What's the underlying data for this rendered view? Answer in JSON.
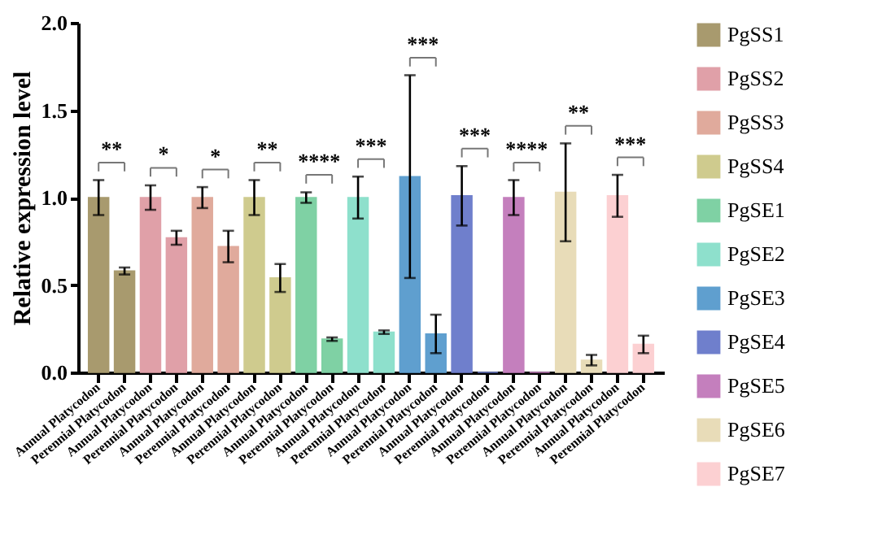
{
  "chart_data": {
    "type": "bar",
    "ylabel": "Relative expression level",
    "categories": [
      "Annual Platycodon",
      "Perennial Platycodon",
      "Annual Platycodon",
      "Perennial Platycodon",
      "Annual Platycodon",
      "Perennial Platycodon",
      "Annual Platycodon",
      "Perennial Platycodon",
      "Annual Platycodon",
      "Perennial Platycodon",
      "Annual Platycodon",
      "Perennial Platycodon",
      "Annual Platycodon",
      "Perennial Platycodon",
      "Annual Platycodon",
      "Perennial Platycodon",
      "Annual Platycodon",
      "Perennial Platycodon",
      "Annual Platycodon",
      "Perennial Platycodon",
      "Annual Platycodon",
      "Perennial Platycodon"
    ],
    "series": [
      {
        "name": "PgSS1",
        "color": "#a89a6e",
        "values": [
          1.0,
          0.58,
          null,
          null,
          null,
          null,
          null,
          null,
          null,
          null,
          null,
          null,
          null,
          null,
          null,
          null,
          null,
          null,
          null,
          null,
          null,
          null
        ],
        "errors": [
          0.1,
          0.02,
          null,
          null,
          null,
          null,
          null,
          null,
          null,
          null,
          null,
          null,
          null,
          null,
          null,
          null,
          null,
          null,
          null,
          null,
          null,
          null
        ]
      },
      {
        "name": "PgSS2",
        "color": "#e0a0a8",
        "values": [
          null,
          null,
          1.0,
          0.77,
          null,
          null,
          null,
          null,
          null,
          null,
          null,
          null,
          null,
          null,
          null,
          null,
          null,
          null,
          null,
          null,
          null,
          null
        ],
        "errors": [
          null,
          null,
          0.07,
          0.04,
          null,
          null,
          null,
          null,
          null,
          null,
          null,
          null,
          null,
          null,
          null,
          null,
          null,
          null,
          null,
          null,
          null,
          null
        ]
      },
      {
        "name": "PgSS3",
        "color": "#e0aa9c",
        "values": [
          null,
          null,
          null,
          null,
          1.0,
          0.72,
          null,
          null,
          null,
          null,
          null,
          null,
          null,
          null,
          null,
          null,
          null,
          null,
          null,
          null,
          null,
          null
        ],
        "errors": [
          null,
          null,
          null,
          null,
          0.06,
          0.09,
          null,
          null,
          null,
          null,
          null,
          null,
          null,
          null,
          null,
          null,
          null,
          null,
          null,
          null,
          null,
          null
        ]
      },
      {
        "name": "PgSS4",
        "color": "#cfcb8e",
        "values": [
          null,
          null,
          null,
          null,
          null,
          null,
          1.0,
          0.54,
          null,
          null,
          null,
          null,
          null,
          null,
          null,
          null,
          null,
          null,
          null,
          null,
          null,
          null
        ],
        "errors": [
          null,
          null,
          null,
          null,
          null,
          null,
          0.1,
          0.08,
          null,
          null,
          null,
          null,
          null,
          null,
          null,
          null,
          null,
          null,
          null,
          null,
          null,
          null
        ]
      },
      {
        "name": "PgSE1",
        "color": "#7fd1a4",
        "values": [
          null,
          null,
          null,
          null,
          null,
          null,
          null,
          null,
          1.0,
          0.19,
          null,
          null,
          null,
          null,
          null,
          null,
          null,
          null,
          null,
          null,
          null,
          null
        ],
        "errors": [
          null,
          null,
          null,
          null,
          null,
          null,
          null,
          null,
          0.03,
          0.01,
          null,
          null,
          null,
          null,
          null,
          null,
          null,
          null,
          null,
          null,
          null,
          null
        ]
      },
      {
        "name": "PgSE2",
        "color": "#8ee0cc",
        "values": [
          null,
          null,
          null,
          null,
          null,
          null,
          null,
          null,
          null,
          null,
          1.0,
          0.23,
          null,
          null,
          null,
          null,
          null,
          null,
          null,
          null,
          null,
          null
        ],
        "errors": [
          null,
          null,
          null,
          null,
          null,
          null,
          null,
          null,
          null,
          null,
          0.12,
          0.01,
          null,
          null,
          null,
          null,
          null,
          null,
          null,
          null,
          null,
          null
        ]
      },
      {
        "name": "PgSE3",
        "color": "#5f9fcf",
        "values": [
          null,
          null,
          null,
          null,
          null,
          null,
          null,
          null,
          null,
          null,
          null,
          null,
          1.12,
          0.22,
          null,
          null,
          null,
          null,
          null,
          null,
          null,
          null
        ],
        "errors": [
          null,
          null,
          null,
          null,
          null,
          null,
          null,
          null,
          null,
          null,
          null,
          null,
          0.58,
          0.11,
          null,
          null,
          null,
          null,
          null,
          null,
          null,
          null
        ]
      },
      {
        "name": "PgSE4",
        "color": "#6f7fcc",
        "values": [
          null,
          null,
          null,
          null,
          null,
          null,
          null,
          null,
          null,
          null,
          null,
          null,
          null,
          null,
          1.01,
          0.0,
          null,
          null,
          null,
          null,
          null,
          null
        ],
        "errors": [
          null,
          null,
          null,
          null,
          null,
          null,
          null,
          null,
          null,
          null,
          null,
          null,
          null,
          null,
          0.17,
          null,
          null,
          null,
          null,
          null,
          null,
          null
        ]
      },
      {
        "name": "PgSE5",
        "color": "#c47fbd",
        "values": [
          null,
          null,
          null,
          null,
          null,
          null,
          null,
          null,
          null,
          null,
          null,
          null,
          null,
          null,
          null,
          null,
          1.0,
          0.0,
          null,
          null,
          null,
          null
        ],
        "errors": [
          null,
          null,
          null,
          null,
          null,
          null,
          null,
          null,
          null,
          null,
          null,
          null,
          null,
          null,
          null,
          null,
          0.1,
          null,
          null,
          null,
          null,
          null
        ]
      },
      {
        "name": "PgSE6",
        "color": "#e8dcb8",
        "values": [
          null,
          null,
          null,
          null,
          null,
          null,
          null,
          null,
          null,
          null,
          null,
          null,
          null,
          null,
          null,
          null,
          null,
          null,
          1.03,
          0.07,
          null,
          null
        ],
        "errors": [
          null,
          null,
          null,
          null,
          null,
          null,
          null,
          null,
          null,
          null,
          null,
          null,
          null,
          null,
          null,
          null,
          null,
          null,
          0.28,
          0.03,
          null,
          null
        ]
      },
      {
        "name": "PgSE7",
        "color": "#fcd0d2",
        "values": [
          null,
          null,
          null,
          null,
          null,
          null,
          null,
          null,
          null,
          null,
          null,
          null,
          null,
          null,
          null,
          null,
          null,
          null,
          null,
          null,
          1.01,
          0.16
        ],
        "errors": [
          null,
          null,
          null,
          null,
          null,
          null,
          null,
          null,
          null,
          null,
          null,
          null,
          null,
          null,
          null,
          null,
          null,
          null,
          null,
          null,
          0.12,
          0.05
        ]
      }
    ],
    "ylim": [
      0,
      2.0
    ],
    "yticks": [
      {
        "value": 0,
        "label": "0.0"
      },
      {
        "value": 0.5,
        "label": "0.5"
      },
      {
        "value": 1.0,
        "label": "1.0"
      },
      {
        "value": 1.5,
        "label": "1.5"
      },
      {
        "value": 2.0,
        "label": "2.0"
      }
    ],
    "annotations": [
      "**",
      "*",
      "*",
      "**",
      "****",
      "***",
      "***",
      "***",
      "****",
      "**",
      "***"
    ],
    "grid": false,
    "legend": "right"
  }
}
